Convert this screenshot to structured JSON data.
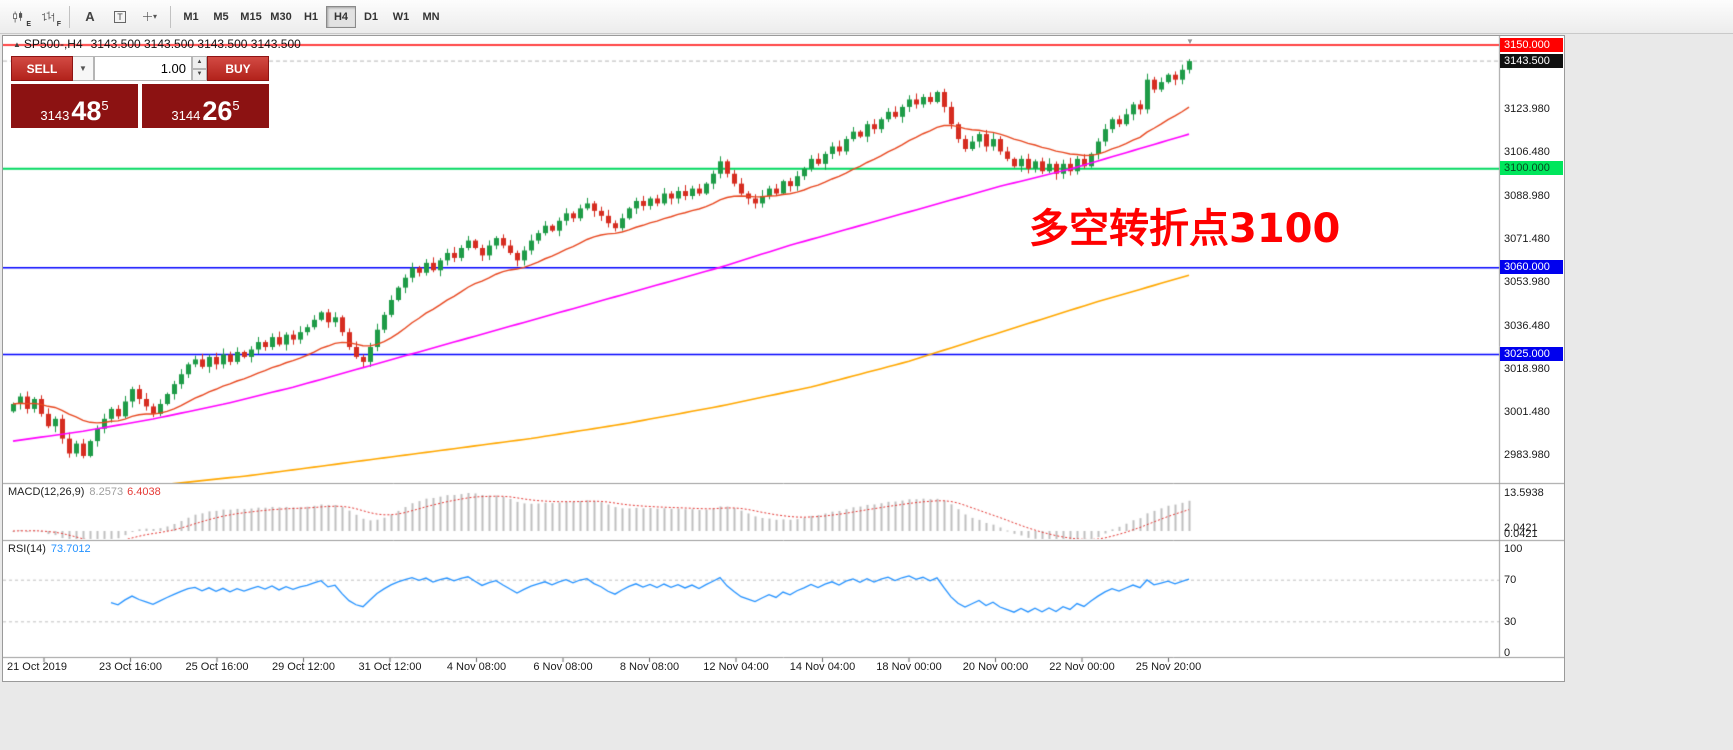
{
  "toolbar": {
    "icons": [
      {
        "name": "candlestick-chart-icon",
        "sub": "E"
      },
      {
        "name": "bar-chart-icon",
        "sub": "F"
      },
      {
        "name": "text-annotation-icon",
        "label": "A"
      },
      {
        "name": "text-box-icon",
        "label": "T"
      },
      {
        "name": "crosshair-tool-icon",
        "dropdown": "▾"
      }
    ],
    "timeframes": [
      {
        "label": "M1",
        "active": false
      },
      {
        "label": "M5",
        "active": false
      },
      {
        "label": "M15",
        "active": false
      },
      {
        "label": "M30",
        "active": false
      },
      {
        "label": "H1",
        "active": false
      },
      {
        "label": "H4",
        "active": true
      },
      {
        "label": "D1",
        "active": false
      },
      {
        "label": "W1",
        "active": false
      },
      {
        "label": "MN",
        "active": false
      }
    ]
  },
  "chart": {
    "title_symbol": "SP500-,H4",
    "title_ohlc": "3143.500 3143.500 3143.500 3143.500",
    "annotation_text": "多空转折点3100"
  },
  "trade_panel": {
    "sell_label": "SELL",
    "buy_label": "BUY",
    "volume": "1.00",
    "bid_big": "3143",
    "bid_pips": "48",
    "bid_sup": "5",
    "ask_big": "3144",
    "ask_pips": "26",
    "ask_sup": "5"
  },
  "chart_data": {
    "type": "candlestick+indicators",
    "symbol": "SP500-",
    "timeframe": "H4",
    "current_price": 3143.5,
    "closes": [
      3005,
      3008,
      3003,
      3007,
      3001,
      2996,
      2999,
      2991,
      2985,
      2989,
      2984,
      2990,
      2995,
      2999,
      3003,
      3000,
      3006,
      3011,
      3007,
      3004,
      3001,
      3005,
      3009,
      3013,
      3017,
      3021,
      3023,
      3020,
      3024,
      3021,
      3025,
      3022,
      3026,
      3024,
      3027,
      3030,
      3028,
      3032,
      3029,
      3033,
      3031,
      3034,
      3036,
      3039,
      3042,
      3038,
      3040,
      3034,
      3028,
      3024,
      3022,
      3028,
      3035,
      3041,
      3047,
      3052,
      3056,
      3060,
      3058,
      3062,
      3059,
      3063,
      3066,
      3064,
      3068,
      3071,
      3068,
      3065,
      3069,
      3072,
      3069,
      3066,
      3063,
      3067,
      3071,
      3074,
      3077,
      3075,
      3079,
      3082,
      3080,
      3084,
      3086,
      3083,
      3081,
      3078,
      3076,
      3080,
      3084,
      3087,
      3085,
      3088,
      3086,
      3090,
      3088,
      3091,
      3089,
      3092,
      3090,
      3094,
      3098,
      3103,
      3098,
      3094,
      3090,
      3088,
      3086,
      3089,
      3092,
      3090,
      3095,
      3093,
      3097,
      3100,
      3104,
      3102,
      3106,
      3109,
      3107,
      3112,
      3115,
      3113,
      3118,
      3116,
      3120,
      3123,
      3121,
      3125,
      3128,
      3126,
      3129,
      3127,
      3131,
      3125,
      3118,
      3112,
      3108,
      3111,
      3114,
      3109,
      3112,
      3107,
      3104,
      3101,
      3104,
      3100,
      3103,
      3099,
      3102,
      3098,
      3102,
      3099,
      3104,
      3101,
      3106,
      3111,
      3116,
      3120,
      3118,
      3122,
      3126,
      3124,
      3136,
      3132,
      3135,
      3138,
      3136,
      3140,
      3143.5
    ],
    "h_lines": [
      {
        "price": 3150,
        "color": "#ff0000",
        "width": 1.6
      },
      {
        "price": 3100,
        "color": "#00d95f",
        "width": 2
      },
      {
        "price": 3060,
        "color": "#0000ff",
        "width": 1.6
      },
      {
        "price": 3025,
        "color": "#0000ff",
        "width": 1.6
      }
    ],
    "price_axis": [
      {
        "text": "3150.000",
        "price": 3150,
        "style": "red"
      },
      {
        "text": "3143.500",
        "price": 3143.5,
        "style": "black"
      },
      {
        "text": "3123.980",
        "price": 3123.98,
        "style": "plain"
      },
      {
        "text": "3106.480",
        "price": 3106.48,
        "style": "plain"
      },
      {
        "text": "3100.000",
        "price": 3100,
        "style": "green"
      },
      {
        "text": "3088.980",
        "price": 3088.98,
        "style": "plain"
      },
      {
        "text": "3071.480",
        "price": 3071.48,
        "style": "plain"
      },
      {
        "text": "3060.000",
        "price": 3060,
        "style": "blue"
      },
      {
        "text": "3053.980",
        "price": 3053.98,
        "style": "plain"
      },
      {
        "text": "3036.480",
        "price": 3036.48,
        "style": "plain"
      },
      {
        "text": "3025.000",
        "price": 3025,
        "style": "blue"
      },
      {
        "text": "3018.980",
        "price": 3018.98,
        "style": "plain"
      },
      {
        "text": "3001.480",
        "price": 3001.48,
        "style": "plain"
      },
      {
        "text": "2983.980",
        "price": 2983.98,
        "style": "plain"
      }
    ],
    "time_labels": [
      "21 Oct 2019",
      "23 Oct 16:00",
      "25 Oct 16:00",
      "29 Oct 12:00",
      "31 Oct 12:00",
      "4 Nov 08:00",
      "6 Nov 08:00",
      "8 Nov 08:00",
      "12 Nov 04:00",
      "14 Nov 04:00",
      "18 Nov 00:00",
      "20 Nov 00:00",
      "22 Nov 00:00",
      "25 Nov 20:00"
    ],
    "ma_mid_anchors": [
      [
        0,
        2990
      ],
      [
        0.06,
        2994
      ],
      [
        0.12,
        2999
      ],
      [
        0.18,
        3005
      ],
      [
        0.24,
        3012
      ],
      [
        0.3,
        3020
      ],
      [
        0.36,
        3028
      ],
      [
        0.42,
        3036
      ],
      [
        0.48,
        3044
      ],
      [
        0.54,
        3052
      ],
      [
        0.6,
        3060
      ],
      [
        0.66,
        3069
      ],
      [
        0.72,
        3077
      ],
      [
        0.78,
        3085
      ],
      [
        0.84,
        3093
      ],
      [
        0.9,
        3100
      ],
      [
        0.95,
        3107
      ],
      [
        1,
        3114
      ]
    ],
    "ma_slow_anchors": [
      [
        0.04,
        2968
      ],
      [
        0.12,
        2972
      ],
      [
        0.2,
        2976
      ],
      [
        0.28,
        2981
      ],
      [
        0.36,
        2986
      ],
      [
        0.44,
        2991
      ],
      [
        0.52,
        2997
      ],
      [
        0.6,
        3004
      ],
      [
        0.68,
        3012
      ],
      [
        0.76,
        3022
      ],
      [
        0.84,
        3034
      ],
      [
        0.92,
        3046
      ],
      [
        1,
        3057
      ]
    ],
    "macd": {
      "name": "MACD(12,26,9)",
      "value": "8.2573",
      "signal": "6.4038",
      "axis_top": "13.5938",
      "axis_mid": "2.0421",
      "axis_zero": "0.0421",
      "fast": 12,
      "slow": 26,
      "smoothing": 9
    },
    "rsi": {
      "name": "RSI(14)",
      "value": "73.7012",
      "period": 14,
      "levels": [
        {
          "label": "100",
          "value": 100,
          "dashed": false
        },
        {
          "label": "70",
          "value": 70,
          "dashed": true
        },
        {
          "label": "30",
          "value": 30,
          "dashed": true
        },
        {
          "label": "0",
          "value": 0,
          "dashed": false
        }
      ]
    },
    "colors": {
      "up": "#1e9b47",
      "down": "#d62c20",
      "ma_fast": "#e8471f",
      "ma_mid": "#ff00ff",
      "ma_slow": "#ffa800",
      "macd_hist": "#c0c0c0",
      "macd_signal": "#e53935",
      "rsi": "#2492ff",
      "current_price_line": "#b5b5b5"
    }
  }
}
